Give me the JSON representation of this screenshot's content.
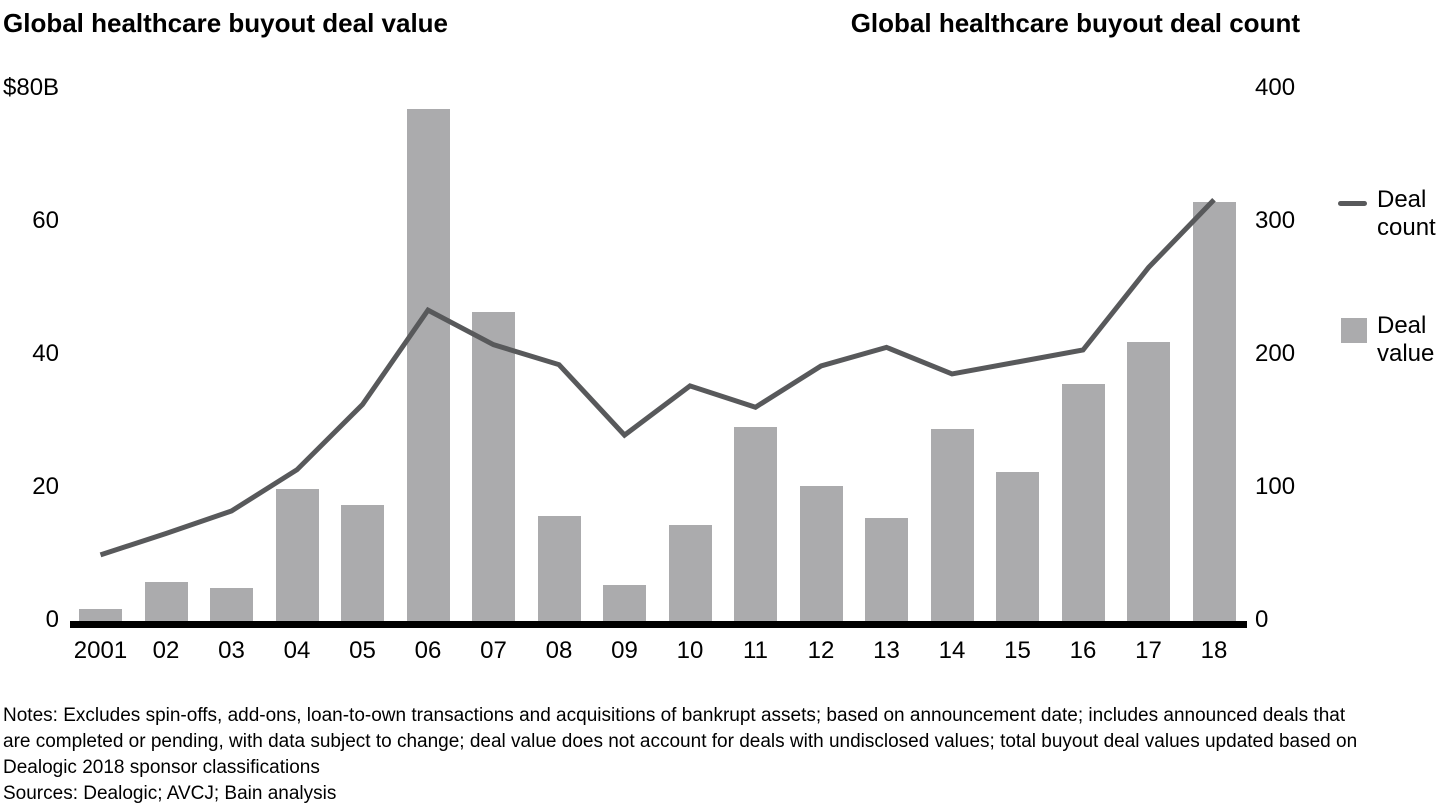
{
  "titles": {
    "left": "Global healthcare buyout deal value",
    "right": "Global healthcare buyout deal count"
  },
  "left_axis": {
    "ticks": [
      {
        "label": "$80B",
        "value": 80
      },
      {
        "label": "60",
        "value": 60
      },
      {
        "label": "40",
        "value": 40
      },
      {
        "label": "20",
        "value": 20
      },
      {
        "label": "0",
        "value": 0
      }
    ]
  },
  "right_axis": {
    "ticks": [
      {
        "label": "400",
        "value": 400
      },
      {
        "label": "300",
        "value": 300
      },
      {
        "label": "200",
        "value": 200
      },
      {
        "label": "100",
        "value": 100
      },
      {
        "label": "0",
        "value": 0
      }
    ]
  },
  "legend": [
    {
      "id": "deal-count",
      "label": "Deal count",
      "swatch": "line"
    },
    {
      "id": "deal-value",
      "label": "Deal value",
      "swatch": "square"
    }
  ],
  "colors": {
    "bar": "#ABABAD",
    "line": "#58595B",
    "axis": "#000000",
    "text": "#000000",
    "background": "#FFFFFF"
  },
  "notes_lines": [
    "Notes: Excludes spin-offs, add-ons, loan-to-own transactions and acquisitions of bankrupt assets; based on announcement date; includes announced deals that",
    "are completed or pending, with data subject to change; deal value does not account for deals with undisclosed values; total buyout deal values updated based on",
    "Dealogic 2018 sponsor classifications"
  ],
  "sources_line": "Sources: Dealogic; AVCJ; Bain analysis",
  "chart_data": {
    "type": "bar",
    "subtype": "bar+line dual axis",
    "categories": [
      "2001",
      "02",
      "03",
      "04",
      "05",
      "06",
      "07",
      "08",
      "09",
      "10",
      "11",
      "12",
      "13",
      "14",
      "15",
      "16",
      "17",
      "18"
    ],
    "series": [
      {
        "name": "Deal value",
        "type": "bar",
        "axis": "left",
        "unit": "$B",
        "values": [
          1.8,
          5.8,
          5.0,
          19.8,
          17.4,
          77.0,
          46.5,
          15.8,
          5.4,
          14.4,
          29.1,
          20.3,
          15.5,
          28.8,
          22.4,
          35.7,
          42.0,
          63.0
        ]
      },
      {
        "name": "Deal count",
        "type": "line",
        "axis": "right",
        "values": [
          49,
          65,
          82,
          113,
          162,
          233,
          207,
          192,
          139,
          176,
          160,
          191,
          205,
          185,
          194,
          203,
          265,
          316
        ]
      }
    ],
    "title": "Global healthcare buyout deal value / Global healthcare buyout deal count",
    "xlabel": "",
    "ylabel_left": "$80B",
    "ylim_left": [
      0,
      80
    ],
    "ylim_right": [
      0,
      400
    ],
    "grid": false,
    "legend_position": "right"
  }
}
